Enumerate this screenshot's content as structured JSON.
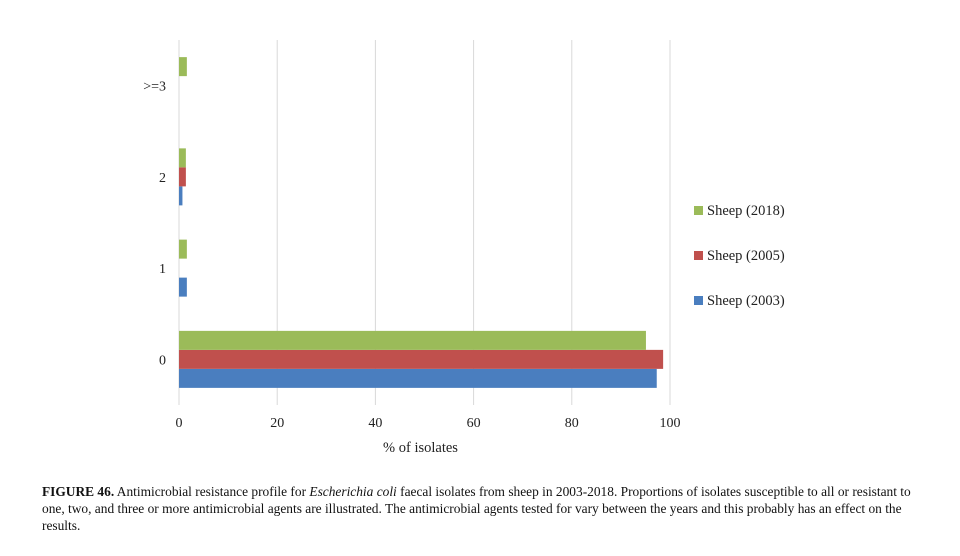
{
  "chart_data": {
    "type": "bar",
    "orientation": "horizontal",
    "categories": [
      "0",
      "1",
      "2",
      ">=3"
    ],
    "series": [
      {
        "name": "Sheep (2003)",
        "color": "#4a7ebf",
        "values": [
          97.3,
          1.6,
          0.7,
          0
        ]
      },
      {
        "name": "Sheep (2005)",
        "color": "#c0504d",
        "values": [
          98.6,
          0,
          1.4,
          0
        ]
      },
      {
        "name": "Sheep (2018)",
        "color": "#9bbb59",
        "values": [
          95.1,
          1.6,
          1.4,
          1.6
        ]
      }
    ],
    "xlabel": "% of isolates",
    "ylabel": "",
    "xlim": [
      0,
      100
    ],
    "xticks": [
      "0",
      "20",
      "40",
      "60",
      "80",
      "100"
    ],
    "grid": true,
    "legend": "right"
  },
  "caption": {
    "label": "FIGURE 46.",
    "text_before": " Antimicrobial resistance profile for ",
    "species": "Escherichia coli",
    "text_after": " faecal isolates from sheep in 2003-2018. Proportions of isolates susceptible to all or resistant to one, two, and three or more antimicrobial agents are illustrated. The antimicrobial agents tested for vary between the years and this probably has an effect on the results."
  }
}
